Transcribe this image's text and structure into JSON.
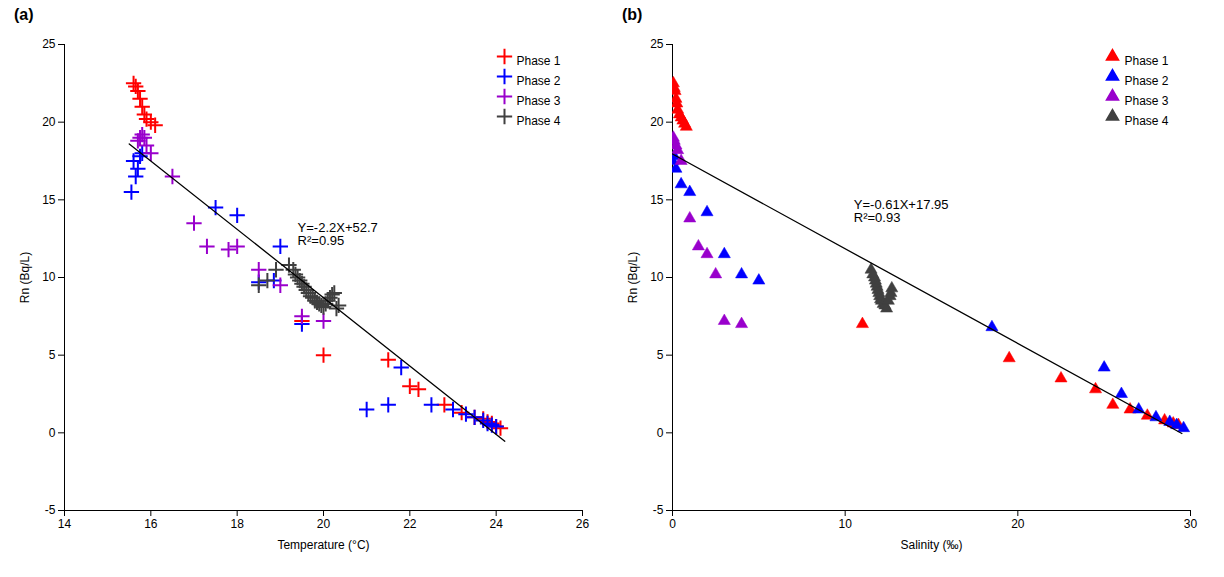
{
  "chart_data": [
    {
      "type": "scatter",
      "title": "(a)",
      "xlabel": "Temperature (°C)",
      "ylabel": "Rn (Bq/L)",
      "xlim": [
        14,
        26
      ],
      "ylim": [
        -5,
        25
      ],
      "xticks": [
        14,
        16,
        18,
        20,
        22,
        24,
        26
      ],
      "yticks": [
        -5,
        0,
        5,
        10,
        15,
        20,
        25
      ],
      "grid": false,
      "legend": "upper right",
      "annotations": [
        {
          "text": "Y=-2.2X+52.7\nR²=0.95",
          "x": 19.4,
          "y": 13.5
        }
      ],
      "series": [
        {
          "name": "Phase 1",
          "color": "#ff0000",
          "marker": "plus",
          "x": [
            15.6,
            15.65,
            15.7,
            15.75,
            15.8,
            15.85,
            15.9,
            16.0,
            16.1,
            19.5,
            20.0,
            21.5,
            22.0,
            22.2,
            22.8,
            23.2,
            23.5,
            23.7,
            23.8,
            23.9,
            24.0,
            24.1
          ],
          "y": [
            22.5,
            22.3,
            22.0,
            21.5,
            21.0,
            20.5,
            20.2,
            20.0,
            19.8,
            7.2,
            5.0,
            4.7,
            3.0,
            2.8,
            1.8,
            1.3,
            1.0,
            0.9,
            0.7,
            0.6,
            0.4,
            0.3
          ]
        },
        {
          "name": "Phase 2",
          "color": "#0000ff",
          "marker": "plus",
          "x": [
            15.55,
            15.6,
            15.65,
            15.7,
            15.75,
            15.8,
            17.5,
            18.0,
            18.5,
            18.85,
            19.0,
            19.5,
            21.0,
            21.5,
            22.5,
            23.0,
            23.3,
            23.5,
            23.7,
            23.8,
            23.9,
            24.0,
            21.8
          ],
          "y": [
            15.5,
            17.5,
            16.5,
            17.0,
            17.8,
            18.0,
            14.5,
            14.0,
            9.7,
            9.8,
            12.0,
            7.0,
            1.5,
            1.8,
            1.8,
            1.5,
            1.2,
            1.0,
            0.8,
            0.6,
            0.5,
            0.4,
            4.2
          ]
        },
        {
          "name": "Phase 3",
          "color": "#9900cc",
          "marker": "plus",
          "x": [
            15.7,
            15.75,
            15.8,
            15.85,
            15.9,
            16.0,
            16.5,
            17.0,
            17.3,
            17.8,
            18.0,
            18.5,
            19.0,
            19.5,
            20.0
          ],
          "y": [
            18.8,
            19.0,
            19.2,
            19.0,
            18.5,
            18.0,
            16.5,
            13.5,
            12.0,
            11.8,
            12.0,
            10.5,
            9.5,
            7.5,
            7.2
          ]
        },
        {
          "name": "Phase 4",
          "color": "#404040",
          "marker": "plus",
          "x": [
            18.5,
            18.7,
            18.9,
            19.2,
            19.3,
            19.35,
            19.4,
            19.45,
            19.5,
            19.55,
            19.6,
            19.65,
            19.7,
            19.75,
            19.8,
            19.85,
            19.9,
            19.95,
            20.0,
            20.05,
            20.1,
            20.15,
            20.2,
            20.25,
            20.3,
            20.35
          ],
          "y": [
            9.5,
            9.8,
            10.5,
            10.8,
            10.5,
            10.2,
            10.0,
            9.8,
            9.6,
            9.4,
            9.2,
            9.0,
            8.8,
            8.7,
            8.5,
            8.4,
            8.3,
            8.2,
            8.1,
            8.3,
            8.5,
            8.7,
            8.9,
            9.0,
            8.0,
            8.2
          ]
        },
        {
          "type": "line",
          "color": "#000000",
          "line_style": "solid",
          "x": [
            15.5,
            24.2
          ],
          "y": [
            18.6,
            -0.54
          ]
        }
      ]
    },
    {
      "type": "scatter",
      "title": "(b)",
      "xlabel": "Salinity (‰)",
      "ylabel": "Rn (Bq/L)",
      "xlim": [
        0,
        30
      ],
      "ylim": [
        -5,
        25
      ],
      "xticks": [
        0,
        10,
        20,
        30
      ],
      "yticks": [
        -5,
        0,
        5,
        10,
        15,
        20,
        25
      ],
      "grid": false,
      "legend": "upper right",
      "annotations": [
        {
          "text": "Y=-0.61X+17.95\nR²=0.93",
          "x": 10.5,
          "y": 15.0
        }
      ],
      "series": [
        {
          "name": "Phase 1",
          "color": "#ff0000",
          "marker": "triangle",
          "x": [
            0.05,
            0.1,
            0.15,
            0.2,
            0.25,
            0.3,
            0.4,
            0.5,
            0.6,
            0.7,
            0.8,
            11.0,
            19.5,
            22.5,
            24.5,
            25.5,
            26.5,
            27.5,
            28.5,
            29.0,
            29.3
          ],
          "y": [
            22.5,
            22.2,
            22.0,
            21.5,
            21.2,
            20.8,
            20.5,
            20.3,
            20.1,
            19.9,
            19.7,
            7.0,
            4.8,
            3.5,
            2.8,
            1.8,
            1.5,
            1.1,
            0.8,
            0.6,
            0.5
          ]
        },
        {
          "name": "Phase 2",
          "color": "#0000ff",
          "marker": "triangle",
          "x": [
            0.0,
            0.1,
            0.2,
            0.5,
            1.0,
            2.0,
            3.0,
            4.0,
            5.0,
            18.5,
            25.0,
            26.0,
            27.0,
            28.0,
            28.8,
            29.2,
            29.6
          ],
          "y": [
            17.5,
            17.8,
            17.0,
            16.0,
            15.5,
            14.2,
            11.5,
            10.2,
            9.8,
            6.8,
            4.2,
            2.5,
            1.5,
            1.0,
            0.7,
            0.5,
            0.3
          ]
        },
        {
          "name": "Phase 3",
          "color": "#9900cc",
          "marker": "triangle",
          "x": [
            0.05,
            0.1,
            0.2,
            0.3,
            0.5,
            1.0,
            1.5,
            2.0,
            2.5,
            3.0,
            4.0
          ],
          "y": [
            19.0,
            18.8,
            18.5,
            18.2,
            17.5,
            13.8,
            12.0,
            11.5,
            10.2,
            7.2,
            7.0
          ]
        },
        {
          "name": "Phase 4",
          "color": "#404040",
          "marker": "triangle",
          "x": [
            11.5,
            11.6,
            11.7,
            11.75,
            11.8,
            11.85,
            11.9,
            11.95,
            12.0,
            12.05,
            12.1,
            12.2,
            12.3,
            12.4,
            12.5,
            12.6,
            12.65,
            12.7
          ],
          "y": [
            10.5,
            10.2,
            10.0,
            9.8,
            9.6,
            9.4,
            9.2,
            9.0,
            8.8,
            8.6,
            8.5,
            8.3,
            8.2,
            8.0,
            8.5,
            8.8,
            9.0,
            9.3
          ]
        },
        {
          "type": "line",
          "color": "#000000",
          "line_style": "solid",
          "x": [
            0.0,
            29.5
          ],
          "y": [
            17.95,
            -0.045
          ]
        }
      ]
    }
  ]
}
